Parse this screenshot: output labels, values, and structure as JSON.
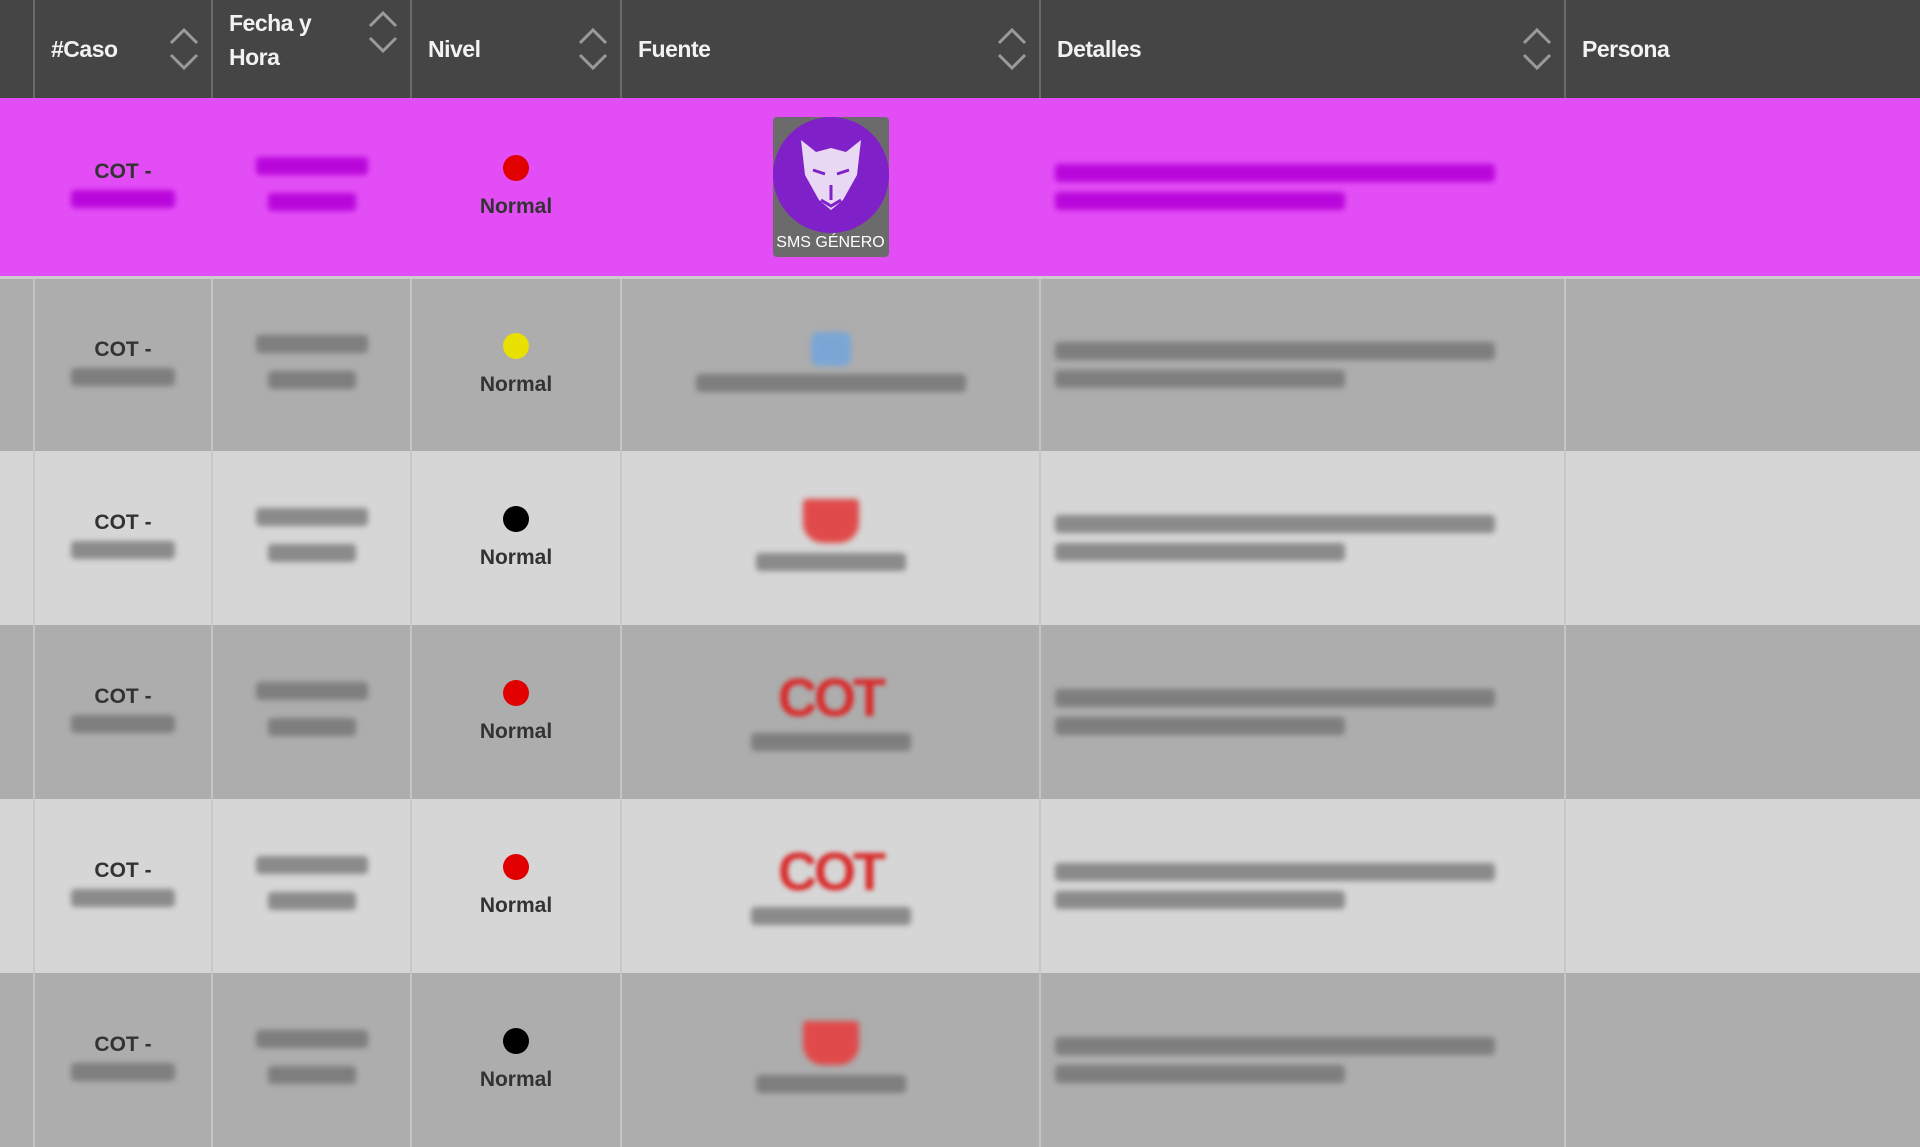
{
  "table": {
    "headers": [
      {
        "label": "#Caso",
        "sortable": true
      },
      {
        "label": "Fecha y Hora",
        "sortable": true
      },
      {
        "label": "Nivel",
        "sortable": true
      },
      {
        "label": "Fuente",
        "sortable": true
      },
      {
        "label": "Detalles",
        "sortable": true
      },
      {
        "label": "Persona",
        "sortable": false
      }
    ],
    "rows": [
      {
        "caso_prefix": "COT -",
        "nivel": "Normal",
        "nivel_color": "#e00000",
        "fuente_icon": "jaguar-logo-icon",
        "fuente_label": "SMS GÉNERO",
        "selected": true,
        "row_color": "#e34df6"
      },
      {
        "caso_prefix": "COT -",
        "nivel": "Normal",
        "nivel_color": "#e8e000",
        "fuente_icon": "blue-logo-icon"
      },
      {
        "caso_prefix": "COT -",
        "nivel": "Normal",
        "nivel_color": "#000000",
        "fuente_icon": "red-badge-icon"
      },
      {
        "caso_prefix": "COT -",
        "nivel": "Normal",
        "nivel_color": "#e00000",
        "fuente_icon": "cot-logo-icon",
        "fuente_logo_text": "COT"
      },
      {
        "caso_prefix": "COT -",
        "nivel": "Normal",
        "nivel_color": "#e00000",
        "fuente_icon": "cot-logo-icon",
        "fuente_logo_text": "COT"
      },
      {
        "caso_prefix": "COT -",
        "nivel": "Normal",
        "nivel_color": "#000000",
        "fuente_icon": "red-badge-icon"
      }
    ]
  },
  "colors": {
    "header_bg": "#454545",
    "selected_row": "#e34df6",
    "row_dark": "#adadad",
    "row_light": "#d6d6d6"
  }
}
